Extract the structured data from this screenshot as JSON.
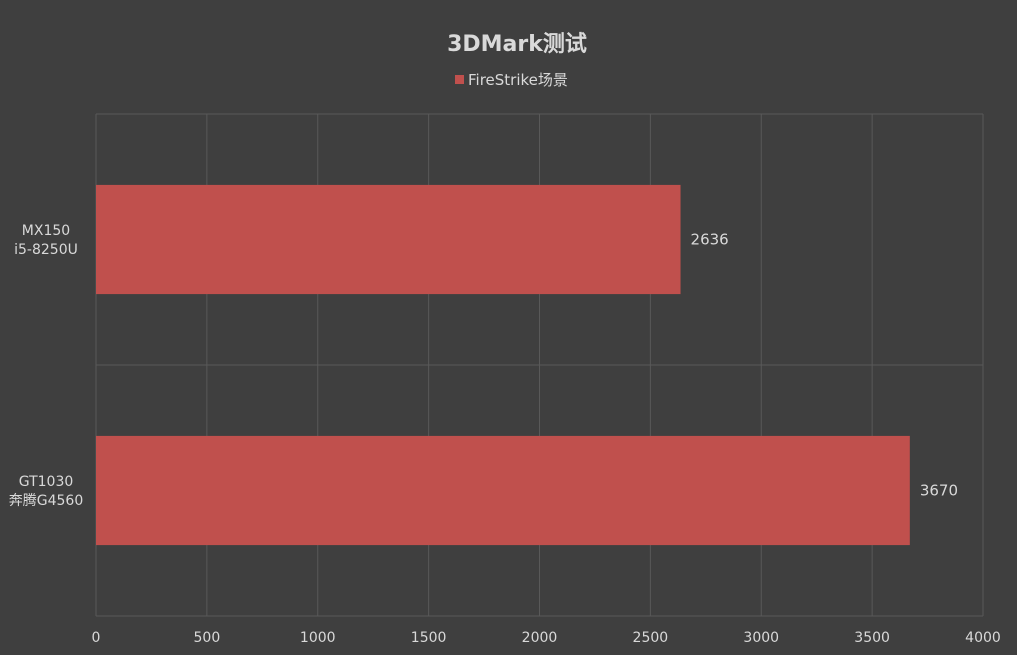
{
  "chart_data": {
    "type": "bar",
    "orientation": "horizontal",
    "title": "3DMark测试",
    "legend": {
      "position": "top",
      "entries": [
        "FireStrike场景"
      ]
    },
    "categories": [
      {
        "lines": [
          "MX150",
          "i5-8250U"
        ]
      },
      {
        "lines": [
          "GT1030",
          "奔腾G4560"
        ]
      }
    ],
    "series": [
      {
        "name": "FireStrike场景",
        "color": "#c0504d",
        "values": [
          2636,
          3670
        ]
      }
    ],
    "xlim": [
      0,
      4000
    ],
    "x_ticks": [
      0,
      500,
      1000,
      1500,
      2000,
      2500,
      3000,
      3500,
      4000
    ],
    "grid": true,
    "data_labels": true
  }
}
